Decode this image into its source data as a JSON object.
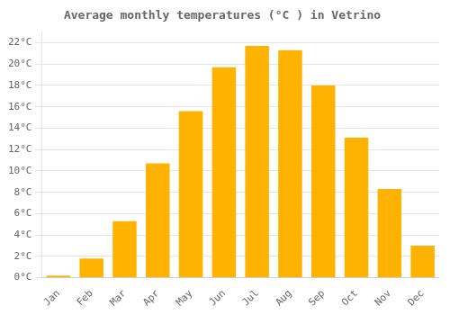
{
  "chart_data": {
    "type": "bar",
    "title": "Average monthly temperatures (°C ) in Vetrino",
    "categories": [
      "Jan",
      "Feb",
      "Mar",
      "Apr",
      "May",
      "Jun",
      "Jul",
      "Aug",
      "Sep",
      "Oct",
      "Nov",
      "Dec"
    ],
    "values": [
      0.2,
      1.8,
      5.3,
      10.7,
      15.6,
      19.7,
      21.7,
      21.3,
      18.0,
      13.1,
      8.3,
      3.0
    ],
    "color": "#FFB300",
    "ylim": [
      0,
      23
    ],
    "yticks": [
      {
        "value": 0,
        "label": "0°C"
      },
      {
        "value": 2,
        "label": "2°C"
      },
      {
        "value": 4,
        "label": "4°C"
      },
      {
        "value": 6,
        "label": "6°C"
      },
      {
        "value": 8,
        "label": "8°C"
      },
      {
        "value": 10,
        "label": "10°C"
      },
      {
        "value": 12,
        "label": "12°C"
      },
      {
        "value": 14,
        "label": "14°C"
      },
      {
        "value": 16,
        "label": "16°C"
      },
      {
        "value": 18,
        "label": "18°C"
      },
      {
        "value": 20,
        "label": "20°C"
      },
      {
        "value": 22,
        "label": "22°C"
      }
    ],
    "grid": true
  }
}
